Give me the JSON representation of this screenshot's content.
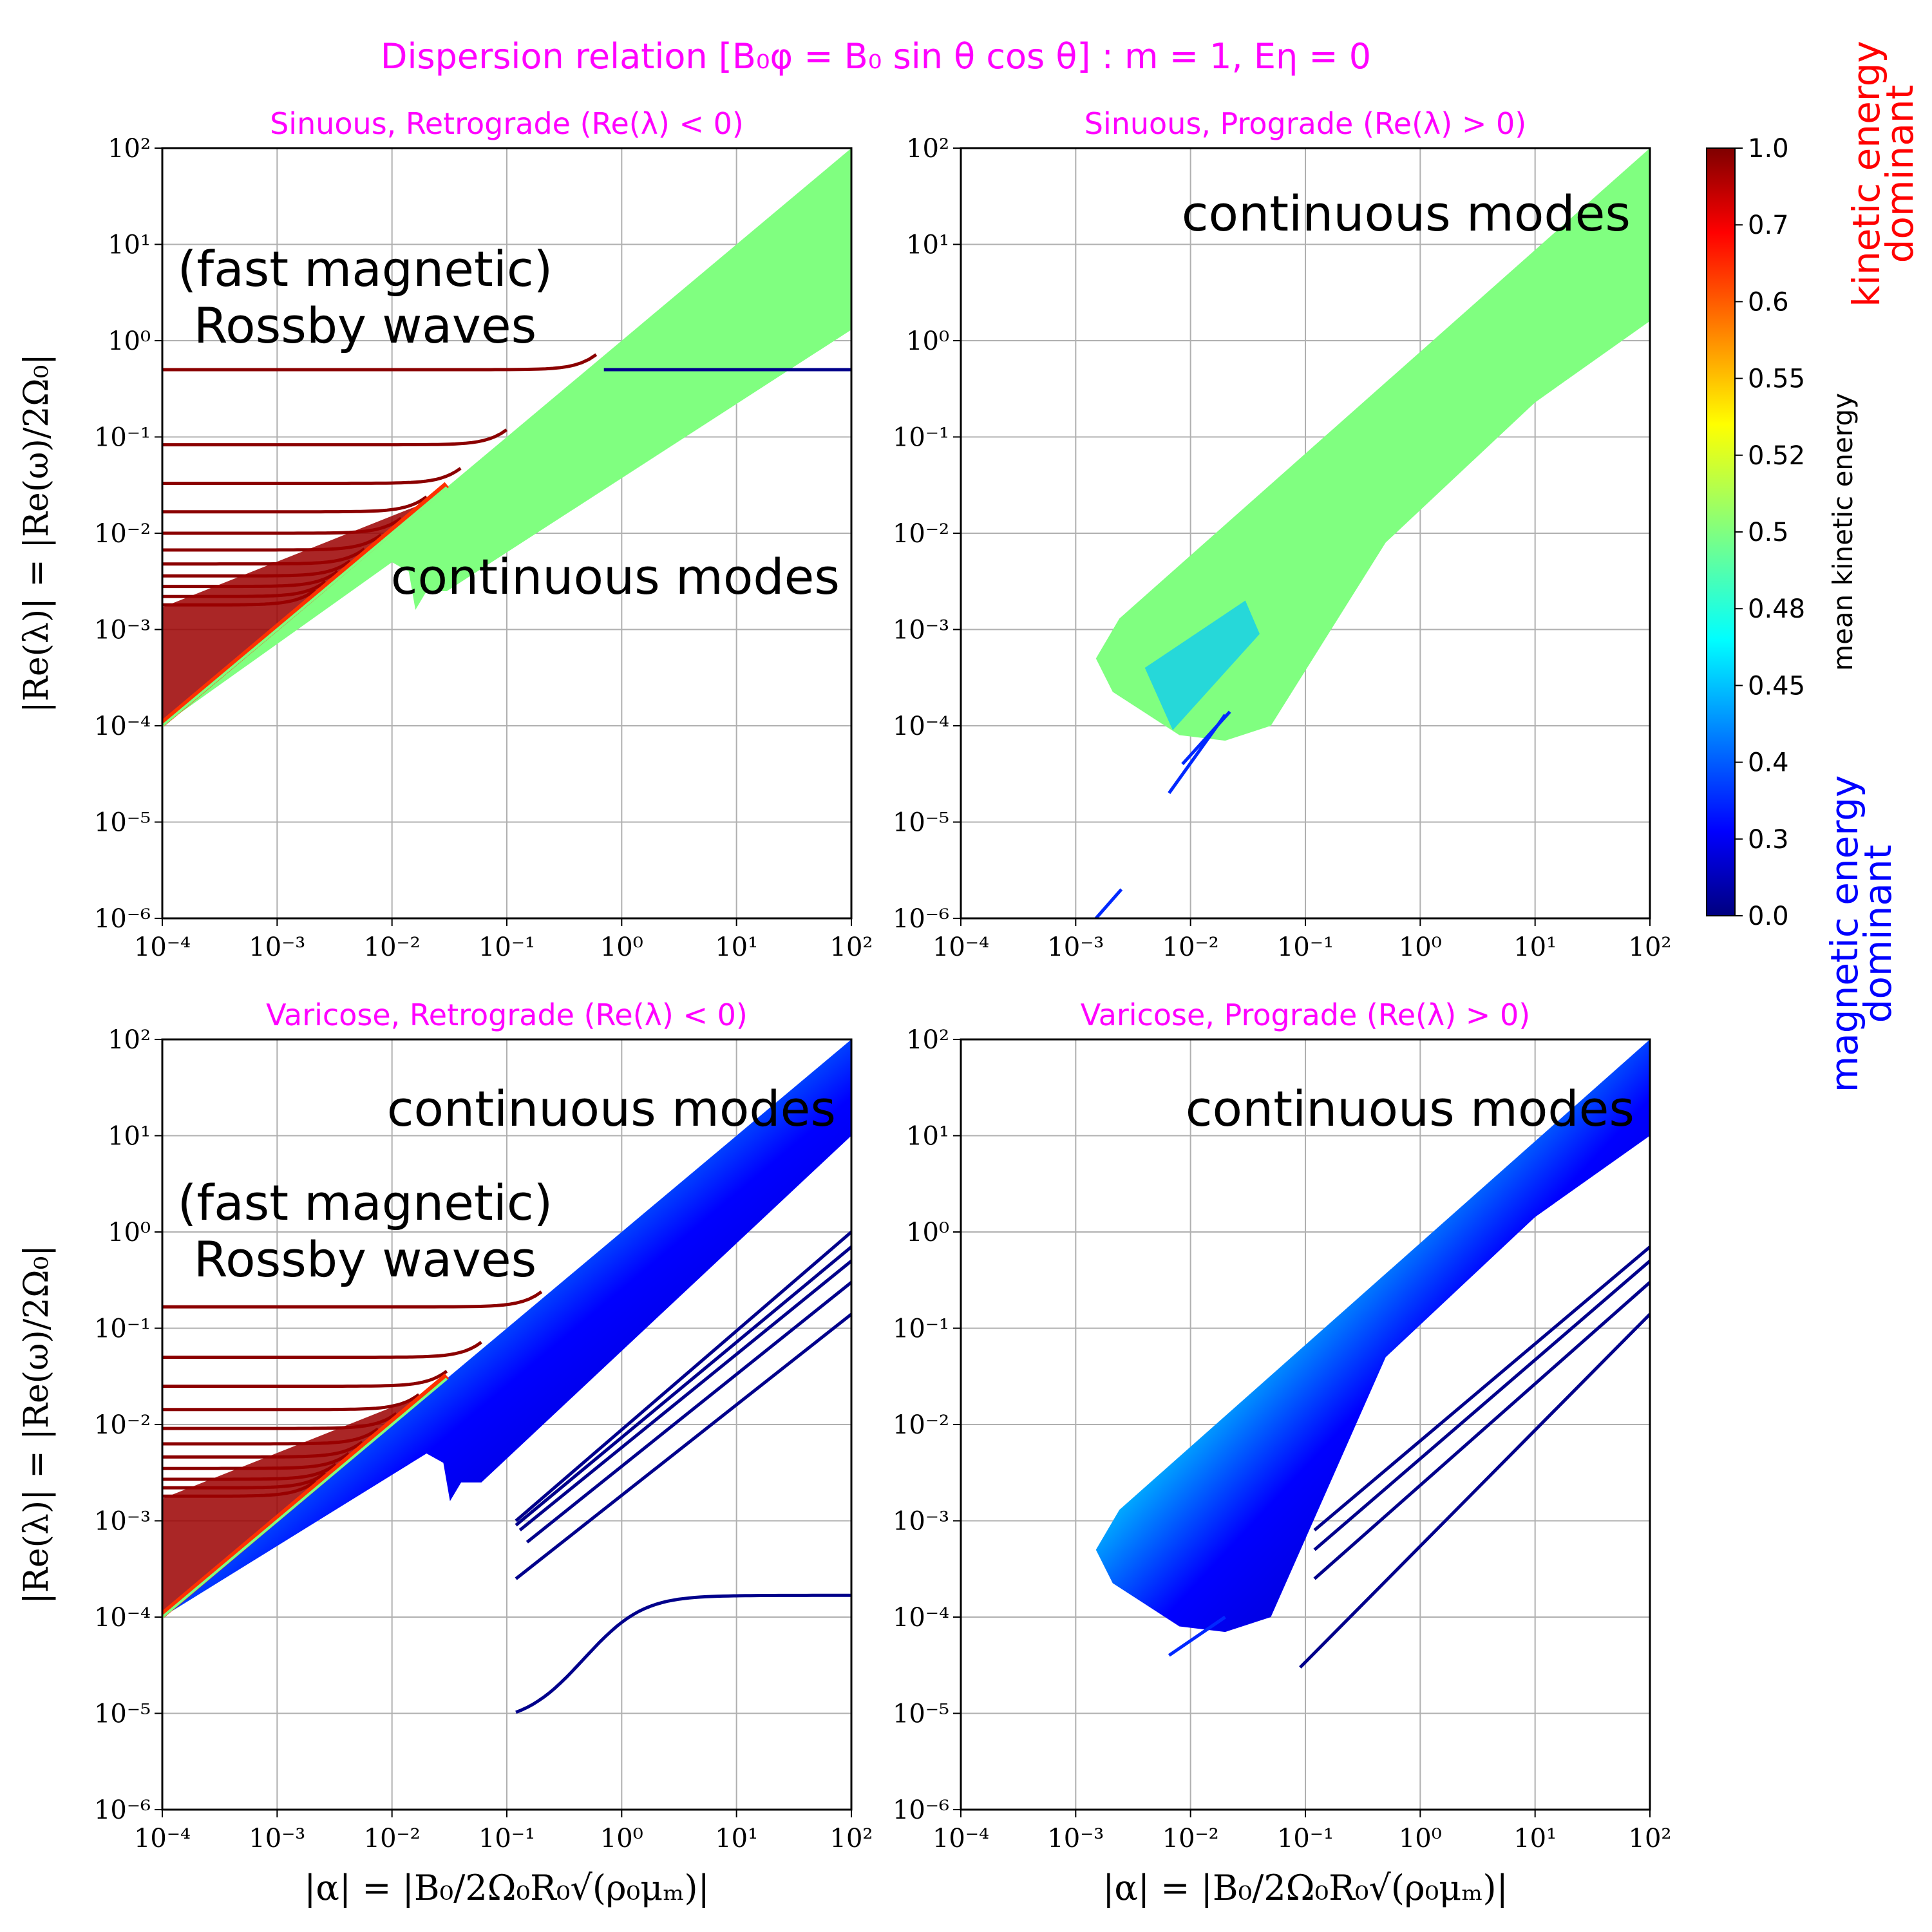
{
  "figure_title": "Dispersion relation [B₀φ = B₀ sin θ cos θ] : m = 1, Eη = 0",
  "colors": {
    "title": "#ff00ff",
    "kinetic": "#ff0000",
    "magnetic": "#0000ff",
    "continuum": "#80ff80",
    "grid": "#b0b0b0"
  },
  "colorbar": {
    "label": "mean kinetic energy",
    "ticks": [
      "1.0",
      "0.7",
      "0.6",
      "0.55",
      "0.52",
      "0.5",
      "0.48",
      "0.45",
      "0.4",
      "0.3",
      "0.0"
    ],
    "top_label_1": "kinetic energy",
    "top_label_2": "dominant",
    "bottom_label_1": "magnetic energy",
    "bottom_label_2": "dominant",
    "colormap": "jet"
  },
  "chart_data": [
    {
      "type": "line",
      "title": "Sinuous, Retrograde (Re(λ) < 0)",
      "xlabel": "",
      "ylabel": "|Re(λ)| = |Re(ω)/2Ω₀|",
      "xscale": "log",
      "yscale": "log",
      "xlim": [
        0.0001,
        100
      ],
      "ylim": [
        1e-06,
        100
      ],
      "xticks": [
        "10⁻⁴",
        "10⁻³",
        "10⁻²",
        "10⁻¹",
        "10⁰",
        "10¹",
        "10²"
      ],
      "yticks": [
        "10²",
        "10¹",
        "10⁰",
        "10⁻¹",
        "10⁻²",
        "10⁻³",
        "10⁻⁴",
        "10⁻⁵",
        "10⁻⁶"
      ],
      "grid": true,
      "annotations": [
        "(fast magnetic)",
        "Rossby waves",
        "continuous modes"
      ],
      "continuum_band": {
        "upper": [
          [
            0.1,
            0.1
          ],
          [
            100,
            100
          ]
        ],
        "lower_end": [
          [
            0.01,
            0.005
          ],
          [
            100,
            1.3
          ]
        ],
        "kinetic_energy": 0.5
      },
      "rossby_levels": [
        0.5,
        0.083,
        0.033,
        0.0167,
        0.01,
        0.0067,
        0.0048,
        0.0036,
        0.0028,
        0.0022,
        0.0018
      ],
      "rossby_x_start": 0.0001,
      "magnetic_branch": {
        "x": [
          0.7,
          100
        ],
        "y": [
          0.5,
          0.5
        ],
        "kinetic_energy": 0.0
      }
    },
    {
      "type": "line",
      "title": "Sinuous, Prograde (Re(λ) > 0)",
      "xlabel": "",
      "ylabel": "",
      "xscale": "log",
      "yscale": "log",
      "xlim": [
        0.0001,
        100
      ],
      "ylim": [
        1e-06,
        100
      ],
      "xticks": [
        "10⁻⁴",
        "10⁻³",
        "10⁻²",
        "10⁻¹",
        "10⁰",
        "10¹",
        "10²"
      ],
      "yticks": [
        "10²",
        "10¹",
        "10⁰",
        "10⁻¹",
        "10⁻²",
        "10⁻³",
        "10⁻⁴",
        "10⁻⁵",
        "10⁻⁶"
      ],
      "grid": true,
      "annotations": [
        "continuous modes"
      ],
      "continuum_band": {
        "x_min": 0.0015,
        "y_at_x_min": 0.0005,
        "upper": [
          [
            0.0015,
            0.0005
          ],
          [
            100,
            100
          ]
        ],
        "lower_end": [
          [
            100,
            1.6
          ]
        ],
        "kinetic_energy": 0.5
      },
      "magnetic_lines": [
        {
          "x": [
            0.0065,
            0.02
          ],
          "y": [
            2e-05,
            0.00013
          ]
        },
        {
          "x": [
            0.0085,
            0.022
          ],
          "y": [
            4e-05,
            0.00014
          ]
        },
        {
          "x": [
            0.0015,
            0.0025
          ],
          "y": [
            1e-06,
            2e-06
          ]
        }
      ]
    },
    {
      "type": "line",
      "title": "Varicose, Retrograde (Re(λ) < 0)",
      "xlabel": "|α| = |B₀/2Ω₀R₀√(ρ₀μₘ)|",
      "ylabel": "|Re(λ)| = |Re(ω)/2Ω₀|",
      "xscale": "log",
      "yscale": "log",
      "xlim": [
        0.0001,
        100
      ],
      "ylim": [
        1e-06,
        100
      ],
      "xticks": [
        "10⁻⁴",
        "10⁻³",
        "10⁻²",
        "10⁻¹",
        "10⁰",
        "10¹",
        "10²"
      ],
      "yticks": [
        "10²",
        "10¹",
        "10⁰",
        "10⁻¹",
        "10⁻²",
        "10⁻³",
        "10⁻⁴",
        "10⁻⁵",
        "10⁻⁶"
      ],
      "grid": true,
      "annotations": [
        "continuous modes",
        "(fast magnetic)",
        "Rossby waves"
      ],
      "continuum_band": {
        "upper": [
          [
            0.1,
            0.1
          ],
          [
            100,
            100
          ]
        ],
        "lower_end": [
          [
            0.02,
            0.005
          ],
          [
            100,
            10
          ]
        ],
        "kinetic_energy": 0.5
      },
      "rossby_levels": [
        0.167,
        0.05,
        0.025,
        0.0143,
        0.0091,
        0.0063,
        0.0046,
        0.0035,
        0.0027,
        0.0022,
        0.0018
      ],
      "rossby_x_start": 0.0001,
      "magnetic_lines": [
        {
          "x": [
            0.12,
            100
          ],
          "y": [
            0.00025,
            0.14
          ]
        },
        {
          "x": [
            0.15,
            100
          ],
          "y": [
            0.0006,
            0.3
          ]
        },
        {
          "x": [
            0.13,
            100
          ],
          "y": [
            0.0008,
            0.5
          ]
        },
        {
          "x": [
            0.12,
            100
          ],
          "y": [
            0.0009,
            0.7
          ]
        },
        {
          "x": [
            0.12,
            100
          ],
          "y": [
            0.001,
            1.0
          ]
        }
      ],
      "slow_branch": {
        "x": [
          0.12,
          1,
          100
        ],
        "y": [
          2e-05,
          0.00013,
          0.00016
        ]
      }
    },
    {
      "type": "line",
      "title": "Varicose, Prograde (Re(λ) > 0)",
      "xlabel": "|α| = |B₀/2Ω₀R₀√(ρ₀μₘ)|",
      "ylabel": "",
      "xscale": "log",
      "yscale": "log",
      "xlim": [
        0.0001,
        100
      ],
      "ylim": [
        1e-06,
        100
      ],
      "xticks": [
        "10⁻⁴",
        "10⁻³",
        "10⁻²",
        "10⁻¹",
        "10⁰",
        "10¹",
        "10²"
      ],
      "yticks": [
        "10²",
        "10¹",
        "10⁰",
        "10⁻¹",
        "10⁻²",
        "10⁻³",
        "10⁻⁴",
        "10⁻⁵",
        "10⁻⁶"
      ],
      "grid": true,
      "annotations": [
        "continuous modes"
      ],
      "continuum_band": {
        "x_min": 0.0015,
        "y_at_x_min": 0.0005,
        "upper": [
          [
            0.0015,
            0.0005
          ],
          [
            100,
            100
          ]
        ],
        "lower_end": [
          [
            100,
            10
          ]
        ],
        "kinetic_energy": 0.5
      },
      "magnetic_lines": [
        {
          "x": [
            0.09,
            100
          ],
          "y": [
            3e-05,
            0.14
          ]
        },
        {
          "x": [
            0.12,
            100
          ],
          "y": [
            0.00025,
            0.3
          ]
        },
        {
          "x": [
            0.12,
            100
          ],
          "y": [
            0.0005,
            0.5
          ]
        },
        {
          "x": [
            0.12,
            100
          ],
          "y": [
            0.0008,
            0.7
          ]
        },
        {
          "x": [
            0.0065,
            0.02
          ],
          "y": [
            4e-05,
            0.0001
          ]
        }
      ]
    }
  ]
}
